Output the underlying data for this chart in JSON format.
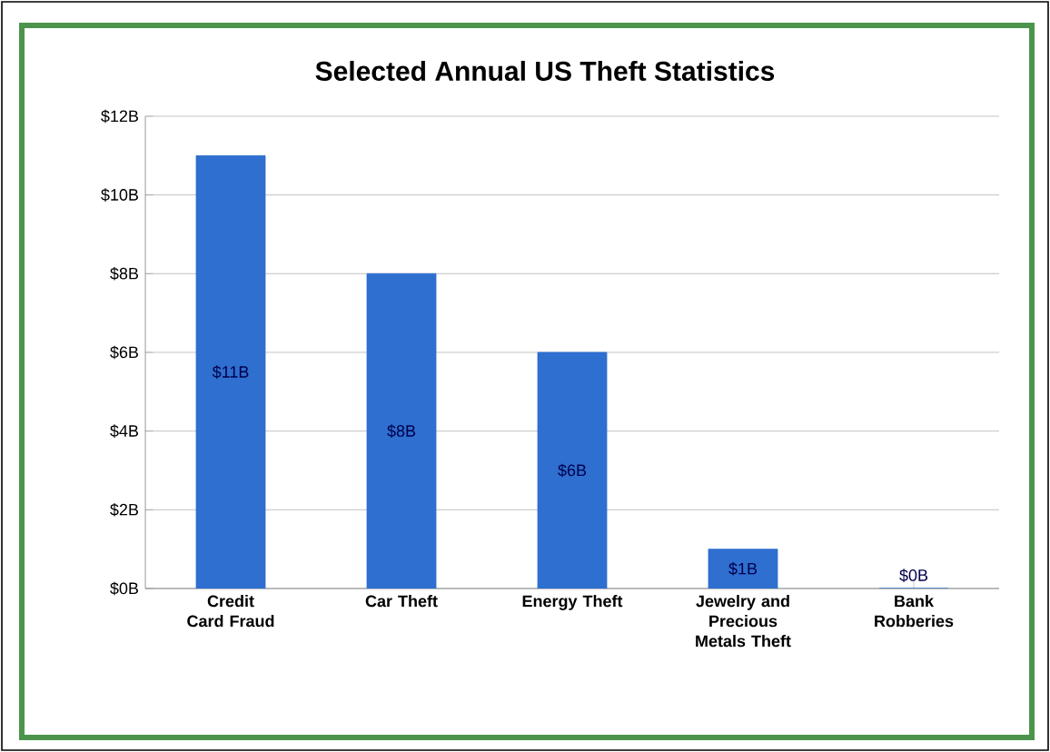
{
  "chart_data": {
    "type": "bar",
    "title": "Selected Annual US Theft Statistics",
    "categories": [
      "Credit Card Fraud",
      "Car Theft",
      "Energy Theft",
      "Jewelry and Precious Metals Theft",
      "Bank Robberies"
    ],
    "values": [
      11,
      8,
      6,
      1,
      0
    ],
    "value_labels": [
      "$11B",
      "$8B",
      "$6B",
      "$1B",
      "$0B"
    ],
    "color": "#2e6fd0",
    "ylim": [
      0,
      12
    ],
    "yticks": [
      {
        "value": 0,
        "label": "$0B"
      },
      {
        "value": 2,
        "label": "$2B"
      },
      {
        "value": 4,
        "label": "$4B"
      },
      {
        "value": 6,
        "label": "$6B"
      },
      {
        "value": 8,
        "label": "$8B"
      },
      {
        "value": 10,
        "label": "$10B"
      },
      {
        "value": 12,
        "label": "$12B"
      }
    ],
    "grid": "y"
  }
}
